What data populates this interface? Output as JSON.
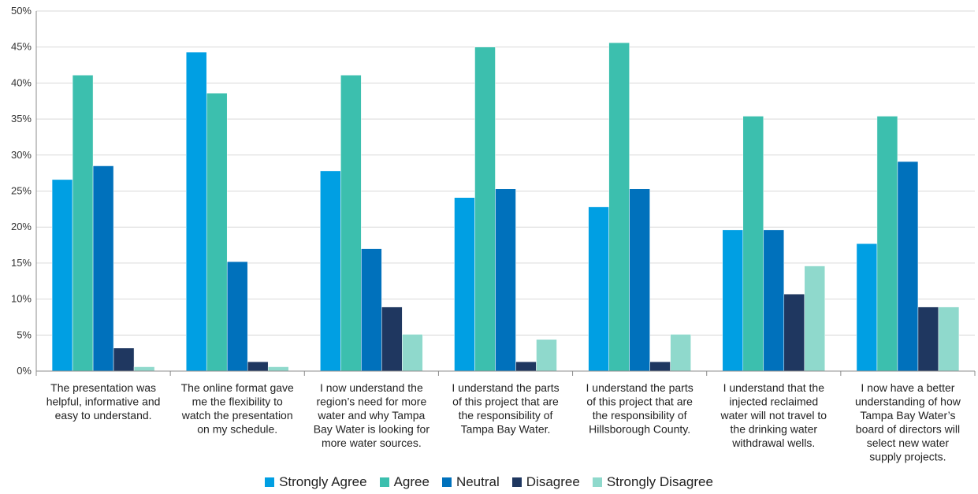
{
  "chart_data": {
    "type": "bar",
    "title": "",
    "xlabel": "",
    "ylabel": "",
    "ylim": [
      0,
      50
    ],
    "yticks": [
      "0%",
      "5%",
      "10%",
      "15%",
      "20%",
      "25%",
      "30%",
      "35%",
      "40%",
      "45%",
      "50%"
    ],
    "grid": true,
    "legend_position": "bottom",
    "categories": [
      [
        "The presentation was",
        "helpful, informative and",
        "easy to understand."
      ],
      [
        "The online format gave",
        "me the flexibility to",
        "watch the presentation",
        "on my schedule."
      ],
      [
        "I now understand the",
        "region’s need for more",
        "water and why Tampa",
        "Bay Water is looking for",
        "more water sources."
      ],
      [
        "I understand the parts",
        "of this project that are",
        "the responsibility of",
        "Tampa Bay Water."
      ],
      [
        "I understand the parts",
        "of this project that are",
        "the responsibility of",
        "Hillsborough County."
      ],
      [
        "I understand that the",
        "injected reclaimed",
        "water will not travel to",
        "the drinking water",
        "withdrawal wells."
      ],
      [
        "I now have a better",
        "understanding of how",
        "Tampa Bay Water’s",
        "board of directors will",
        "select new water",
        "supply projects."
      ]
    ],
    "series": [
      {
        "name": "Strongly Agree",
        "color": "#009fe3",
        "values": [
          26.6,
          44.3,
          27.8,
          24.1,
          22.8,
          19.6,
          17.7
        ]
      },
      {
        "name": "Agree",
        "color": "#3cbfae",
        "values": [
          41.1,
          38.6,
          41.1,
          45.0,
          45.6,
          35.4,
          35.4
        ]
      },
      {
        "name": "Neutral",
        "color": "#0071bc",
        "values": [
          28.5,
          15.2,
          17.0,
          25.3,
          25.3,
          19.6,
          29.1
        ]
      },
      {
        "name": "Disagree",
        "color": "#1f3760",
        "values": [
          3.2,
          1.3,
          8.9,
          1.3,
          1.3,
          10.7,
          8.9
        ]
      },
      {
        "name": "Strongly Disagree",
        "color": "#8fd9cc",
        "values": [
          0.6,
          0.6,
          5.1,
          4.4,
          5.1,
          14.6,
          8.9
        ]
      }
    ]
  }
}
